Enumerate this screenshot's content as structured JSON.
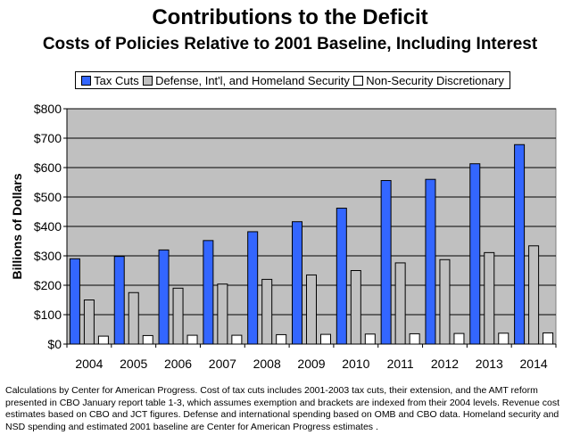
{
  "chart_data": {
    "type": "bar",
    "title": "Contributions to the Deficit",
    "subtitle": "Costs of Policies Relative to 2001 Baseline, Including Interest",
    "xlabel": "",
    "ylabel": "Billions of Dollars",
    "categories": [
      "2004",
      "2005",
      "2006",
      "2007",
      "2008",
      "2009",
      "2010",
      "2011",
      "2012",
      "2013",
      "2014"
    ],
    "ylim": [
      0,
      800
    ],
    "yticks": [
      0,
      100,
      200,
      300,
      400,
      500,
      600,
      700,
      800
    ],
    "ytick_labels": [
      "$0",
      "$100",
      "$200",
      "$300",
      "$400",
      "$500",
      "$600",
      "$700",
      "$800"
    ],
    "grid": true,
    "legend_placement": "top",
    "plot_background": "#c0c0c0",
    "series": [
      {
        "name": "Tax Cuts",
        "color": "#3366ff",
        "values": [
          290,
          298,
          320,
          352,
          382,
          416,
          462,
          556,
          560,
          613,
          678
        ]
      },
      {
        "name": "Defense, Int'l, and Homeland Security",
        "color": "#c0c0c0",
        "values": [
          150,
          175,
          190,
          204,
          220,
          235,
          250,
          276,
          287,
          311,
          334
        ]
      },
      {
        "name": "Non-Security Discretionary",
        "color": "#ffffff",
        "values": [
          27,
          29,
          30,
          30,
          32,
          33,
          34,
          35,
          36,
          37,
          38
        ]
      }
    ]
  },
  "footnote": "Calculations by Center for American Progress.  Cost of tax cuts includes 2001-2003 tax cuts, their extension, and the AMT reform presented in CBO January report table 1-3, which assumes exemption and brackets are indexed from their 2004 levels.  Revenue cost estimates based on CBO and JCT figures.  Defense and international spending based on OMB and CBO data.  Homeland security and NSD spending and estimated 2001 baseline are Center for American Progress estimates ."
}
